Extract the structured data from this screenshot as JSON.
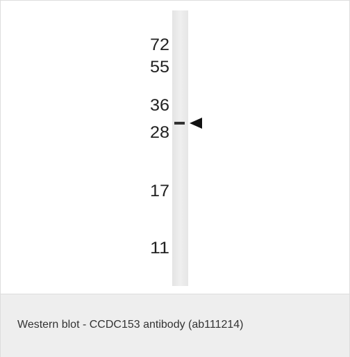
{
  "blot": {
    "markers": [
      "72",
      "55",
      "36",
      "28",
      "17",
      "11"
    ]
  },
  "caption": "Western blot - CCDC153 antibody (ab111214)"
}
